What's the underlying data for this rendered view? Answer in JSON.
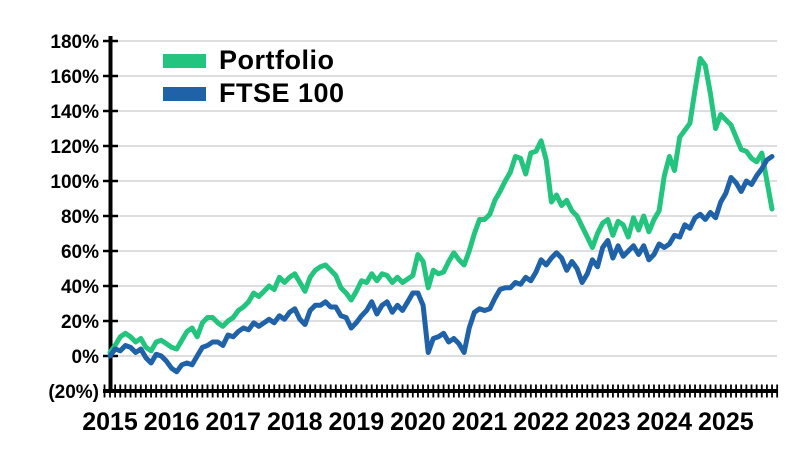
{
  "chart_data": {
    "type": "line",
    "title": "",
    "xlabel": "",
    "ylabel": "",
    "x_unit": "month",
    "x_range": [
      "2015-01",
      "2025-10"
    ],
    "x_tick_labels": [
      "2015",
      "2016",
      "2017",
      "2018",
      "2019",
      "2020",
      "2021",
      "2022",
      "2023",
      "2024",
      "2025"
    ],
    "y_tick_labels": [
      "180%",
      "160%",
      "140%",
      "120%",
      "100%",
      "80%",
      "60%",
      "40%",
      "20%",
      "0%",
      "(20%)"
    ],
    "ylim": [
      -20,
      180
    ],
    "y_step": 20,
    "grid": "horizontal",
    "grid_color": "#C9C9C9",
    "axis_color": "#000000",
    "legend_position": "top-left-inside",
    "series": [
      {
        "name": "Portfolio",
        "color": "#23C47D",
        "values": [
          2,
          6,
          11,
          13,
          11,
          8,
          10,
          5,
          3,
          8,
          9,
          7,
          5,
          4,
          9,
          14,
          16,
          11,
          19,
          22,
          22,
          19,
          17,
          20,
          22,
          26,
          28,
          31,
          36,
          34,
          37,
          40,
          38,
          45,
          42,
          45,
          47,
          42,
          37,
          45,
          49,
          51,
          52,
          49,
          46,
          39,
          36,
          32,
          37,
          43,
          42,
          47,
          43,
          47,
          46,
          42,
          45,
          42,
          44,
          46,
          58,
          54,
          39,
          49,
          47,
          48,
          54,
          59,
          55,
          52,
          60,
          70,
          78,
          78,
          81,
          89,
          94,
          100,
          105,
          114,
          113,
          104,
          116,
          117,
          123,
          112,
          88,
          92,
          86,
          89,
          83,
          80,
          74,
          68,
          62,
          70,
          76,
          78,
          69,
          77,
          75,
          68,
          79,
          72,
          80,
          71,
          78,
          83,
          103,
          114,
          106,
          125,
          129,
          133,
          152,
          170,
          166,
          150,
          130,
          138,
          135,
          132,
          125,
          118,
          117,
          113,
          111,
          116,
          100,
          84
        ]
      },
      {
        "name": "FTSE 100",
        "color": "#1F62A8",
        "values": [
          0,
          4,
          3,
          6,
          5,
          2,
          4,
          -1,
          -4,
          1,
          0,
          -3,
          -7,
          -9,
          -5,
          -4,
          -5,
          0,
          5,
          6,
          8,
          8,
          6,
          12,
          11,
          14,
          16,
          15,
          19,
          17,
          19,
          21,
          19,
          23,
          21,
          25,
          27,
          21,
          18,
          26,
          29,
          29,
          31,
          28,
          28,
          23,
          22,
          16,
          19,
          23,
          26,
          31,
          24,
          29,
          31,
          25,
          29,
          26,
          31,
          36,
          36,
          29,
          2,
          10,
          11,
          13,
          8,
          10,
          7,
          2,
          16,
          25,
          27,
          26,
          27,
          33,
          38,
          39,
          39,
          42,
          41,
          45,
          43,
          48,
          55,
          52,
          56,
          59,
          56,
          49,
          54,
          50,
          42,
          47,
          55,
          51,
          62,
          66,
          56,
          63,
          57,
          60,
          63,
          58,
          63,
          55,
          58,
          64,
          62,
          64,
          69,
          68,
          75,
          73,
          79,
          81,
          78,
          82,
          79,
          88,
          93,
          102,
          99,
          94,
          100,
          98,
          103,
          107,
          112,
          114
        ]
      }
    ]
  },
  "legend": {
    "items": [
      {
        "label": "Portfolio",
        "swatch": "green-swatch"
      },
      {
        "label": "FTSE 100",
        "swatch": "blue-swatch"
      }
    ]
  }
}
